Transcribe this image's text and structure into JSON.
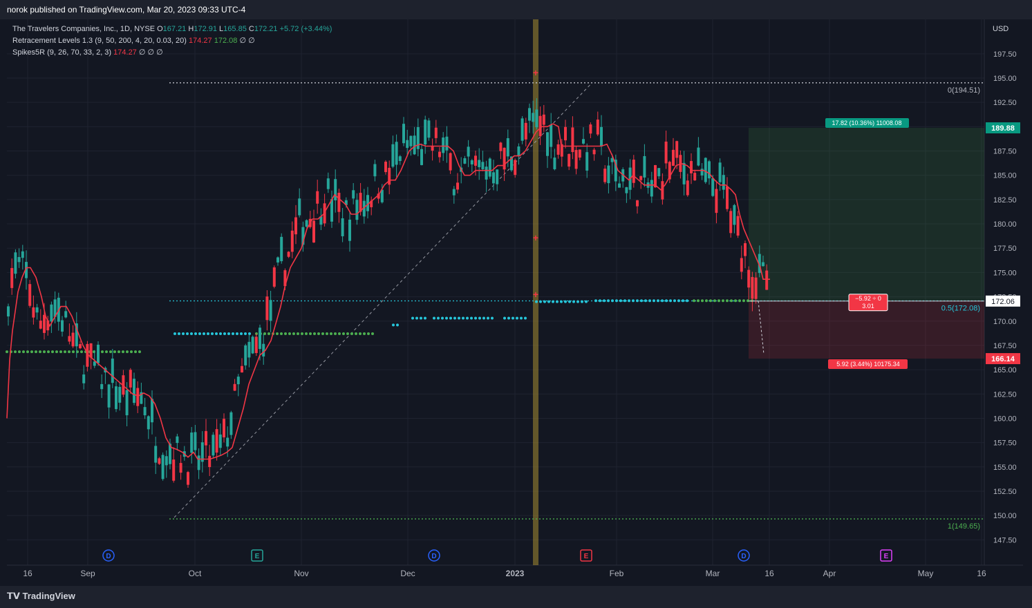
{
  "header": {
    "publisher_line": "norok published on TradingView.com, Mar 20, 2023 09:33 UTC-4"
  },
  "legend": {
    "symbol": "The Travelers Companies, Inc., 1D, NYSE",
    "o_label": "O",
    "o": "167.21",
    "h_label": "H",
    "h": "172.91",
    "l_label": "L",
    "l": "165.85",
    "c_label": "C",
    "c": "172.21",
    "change": "+5.72 (+3.44%)",
    "ind1_name": "Retracement Levels 1.3 (9, 50, 200, 4, 20, 0.03, 20)",
    "ind1_v1": "174.27",
    "ind1_v2": "172.08",
    "ind1_rest": "∅  ∅",
    "ind2_name": "Spikes5R (9, 26, 70, 33, 2, 3)",
    "ind2_v1": "174.27",
    "ind2_rest": "∅  ∅  ∅"
  },
  "footer": {
    "brand": "TradingView"
  },
  "colors": {
    "up": "#26a69a",
    "down": "#f23645",
    "ma": "#f23645",
    "cyan": "#26c6da",
    "green_dots": "#4caf50",
    "bg": "#131722"
  },
  "chart_data": {
    "type": "candlestick",
    "currency": "USD",
    "ylim": [
      146,
      199
    ],
    "y_ticks": [
      "197.50",
      "195.00",
      "192.50",
      "190.00",
      "187.50",
      "185.00",
      "182.50",
      "180.00",
      "177.50",
      "175.00",
      "172.50",
      "170.00",
      "167.50",
      "165.00",
      "162.50",
      "160.00",
      "157.50",
      "155.00",
      "152.50",
      "150.00",
      "147.50"
    ],
    "x_ticks": [
      "16",
      "Sep",
      "Oct",
      "Nov",
      "Dec",
      "2023",
      "Feb",
      "Mar",
      "16",
      "Apr",
      "May",
      "16"
    ],
    "levels": {
      "top": {
        "label": "0(194.51)",
        "value": 194.51
      },
      "mid": {
        "label": "0.5(172.08)",
        "value": 172.08
      },
      "bottom": {
        "label": "1(149.65)",
        "value": 149.65
      }
    },
    "price_tags": {
      "current": "172.06",
      "target": "189.88",
      "stop": "166.14"
    },
    "position": {
      "target_label": "17.82 (10.36%) 11008.08",
      "stop_label": "5.92 (3.44%) 10175.34",
      "center_line1": "−5.92 ÷ 0",
      "center_line2": "3.01",
      "entry": 172.06,
      "target": 189.88,
      "stop": 166.14
    },
    "events": [
      {
        "symbol": "D",
        "color": "#2962ff"
      },
      {
        "symbol": "E",
        "color": "#26a69a"
      },
      {
        "symbol": "D",
        "color": "#2962ff"
      },
      {
        "symbol": "E",
        "color": "#f23645"
      },
      {
        "symbol": "D",
        "color": "#2962ff"
      },
      {
        "symbol": "E",
        "color": "#e040fb"
      }
    ],
    "ma_points": [
      [
        10,
        160
      ],
      [
        14,
        166
      ],
      [
        18,
        169
      ],
      [
        22,
        171
      ],
      [
        26,
        173
      ],
      [
        32,
        174.5
      ],
      [
        38,
        175.5
      ],
      [
        44,
        175.5
      ],
      [
        52,
        174.5
      ],
      [
        60,
        172.5
      ],
      [
        66,
        170.5
      ],
      [
        72,
        169.5
      ],
      [
        80,
        170.5
      ],
      [
        88,
        171.5
      ],
      [
        96,
        171.5
      ],
      [
        104,
        170.5
      ],
      [
        112,
        169
      ],
      [
        120,
        167.5
      ],
      [
        128,
        166.5
      ],
      [
        136,
        166
      ],
      [
        144,
        165.5
      ],
      [
        152,
        165
      ],
      [
        160,
        164.5
      ],
      [
        168,
        164
      ],
      [
        176,
        163.5
      ],
      [
        184,
        163
      ],
      [
        192,
        162.5
      ],
      [
        200,
        162.3
      ],
      [
        208,
        162.6
      ],
      [
        216,
        162.3
      ],
      [
        224,
        161.5
      ],
      [
        232,
        160
      ],
      [
        240,
        158
      ],
      [
        248,
        157
      ],
      [
        256,
        156.8
      ],
      [
        264,
        156.5
      ],
      [
        272,
        156
      ],
      [
        280,
        156.5
      ],
      [
        286,
        155.8
      ],
      [
        290,
        155.8
      ],
      [
        296,
        155.8
      ],
      [
        304,
        155.8
      ],
      [
        312,
        156
      ],
      [
        320,
        156.2
      ],
      [
        328,
        156.5
      ],
      [
        336,
        157
      ],
      [
        344,
        159
      ],
      [
        352,
        161
      ],
      [
        360,
        163.5
      ],
      [
        368,
        165
      ],
      [
        376,
        166.5
      ],
      [
        384,
        167
      ],
      [
        392,
        168
      ],
      [
        400,
        170
      ],
      [
        406,
        171.5
      ],
      [
        412,
        173.5
      ],
      [
        420,
        175.5
      ],
      [
        428,
        176.5
      ],
      [
        436,
        177.5
      ],
      [
        444,
        179.5
      ],
      [
        452,
        180.5
      ],
      [
        460,
        180.5
      ],
      [
        468,
        181
      ],
      [
        476,
        182
      ],
      [
        484,
        183
      ],
      [
        492,
        182.5
      ],
      [
        500,
        182
      ],
      [
        508,
        181
      ],
      [
        516,
        181
      ],
      [
        524,
        181.5
      ],
      [
        532,
        182
      ],
      [
        540,
        182.5
      ],
      [
        548,
        183
      ],
      [
        556,
        184
      ],
      [
        564,
        184.5
      ],
      [
        572,
        184.5
      ],
      [
        580,
        185.5
      ],
      [
        586,
        186.5
      ],
      [
        592,
        187.5
      ],
      [
        600,
        188
      ],
      [
        608,
        188.2
      ],
      [
        616,
        188
      ],
      [
        624,
        188
      ],
      [
        632,
        188
      ],
      [
        640,
        188
      ],
      [
        648,
        188
      ],
      [
        656,
        187.5
      ],
      [
        664,
        186
      ],
      [
        672,
        185
      ],
      [
        680,
        185
      ],
      [
        688,
        185.5
      ],
      [
        696,
        185.5
      ],
      [
        704,
        185.5
      ],
      [
        712,
        185.5
      ],
      [
        720,
        186
      ],
      [
        728,
        186
      ],
      [
        736,
        186.5
      ],
      [
        744,
        187
      ],
      [
        752,
        187
      ],
      [
        760,
        187.5
      ],
      [
        768,
        188.5
      ],
      [
        776,
        189.5
      ],
      [
        784,
        190
      ],
      [
        792,
        190
      ],
      [
        800,
        190.3
      ],
      [
        808,
        190
      ],
      [
        812,
        188
      ],
      [
        820,
        188
      ],
      [
        830,
        188
      ],
      [
        840,
        188
      ],
      [
        850,
        188
      ],
      [
        860,
        188
      ],
      [
        870,
        188
      ],
      [
        878,
        188.2
      ],
      [
        886,
        187
      ],
      [
        894,
        185.5
      ],
      [
        902,
        185
      ],
      [
        910,
        184.5
      ],
      [
        916,
        185
      ],
      [
        924,
        184.5
      ],
      [
        932,
        184
      ],
      [
        940,
        184
      ],
      [
        948,
        184
      ],
      [
        956,
        183.5
      ],
      [
        962,
        184
      ],
      [
        970,
        185
      ],
      [
        978,
        186
      ],
      [
        986,
        186.2
      ],
      [
        994,
        186
      ],
      [
        1002,
        185.5
      ],
      [
        1010,
        185.5
      ],
      [
        1018,
        185.5
      ],
      [
        1026,
        185.2
      ],
      [
        1034,
        184.5
      ],
      [
        1042,
        184
      ],
      [
        1050,
        184
      ],
      [
        1058,
        183.5
      ],
      [
        1064,
        183
      ],
      [
        1070,
        181
      ],
      [
        1076,
        179.5
      ],
      [
        1082,
        178.5
      ],
      [
        1088,
        177.5
      ],
      [
        1094,
        176.5
      ],
      [
        1100,
        175.5
      ],
      [
        1104,
        174.3
      ],
      [
        1110,
        174.3
      ],
      [
        1114,
        174.3
      ]
    ]
  }
}
